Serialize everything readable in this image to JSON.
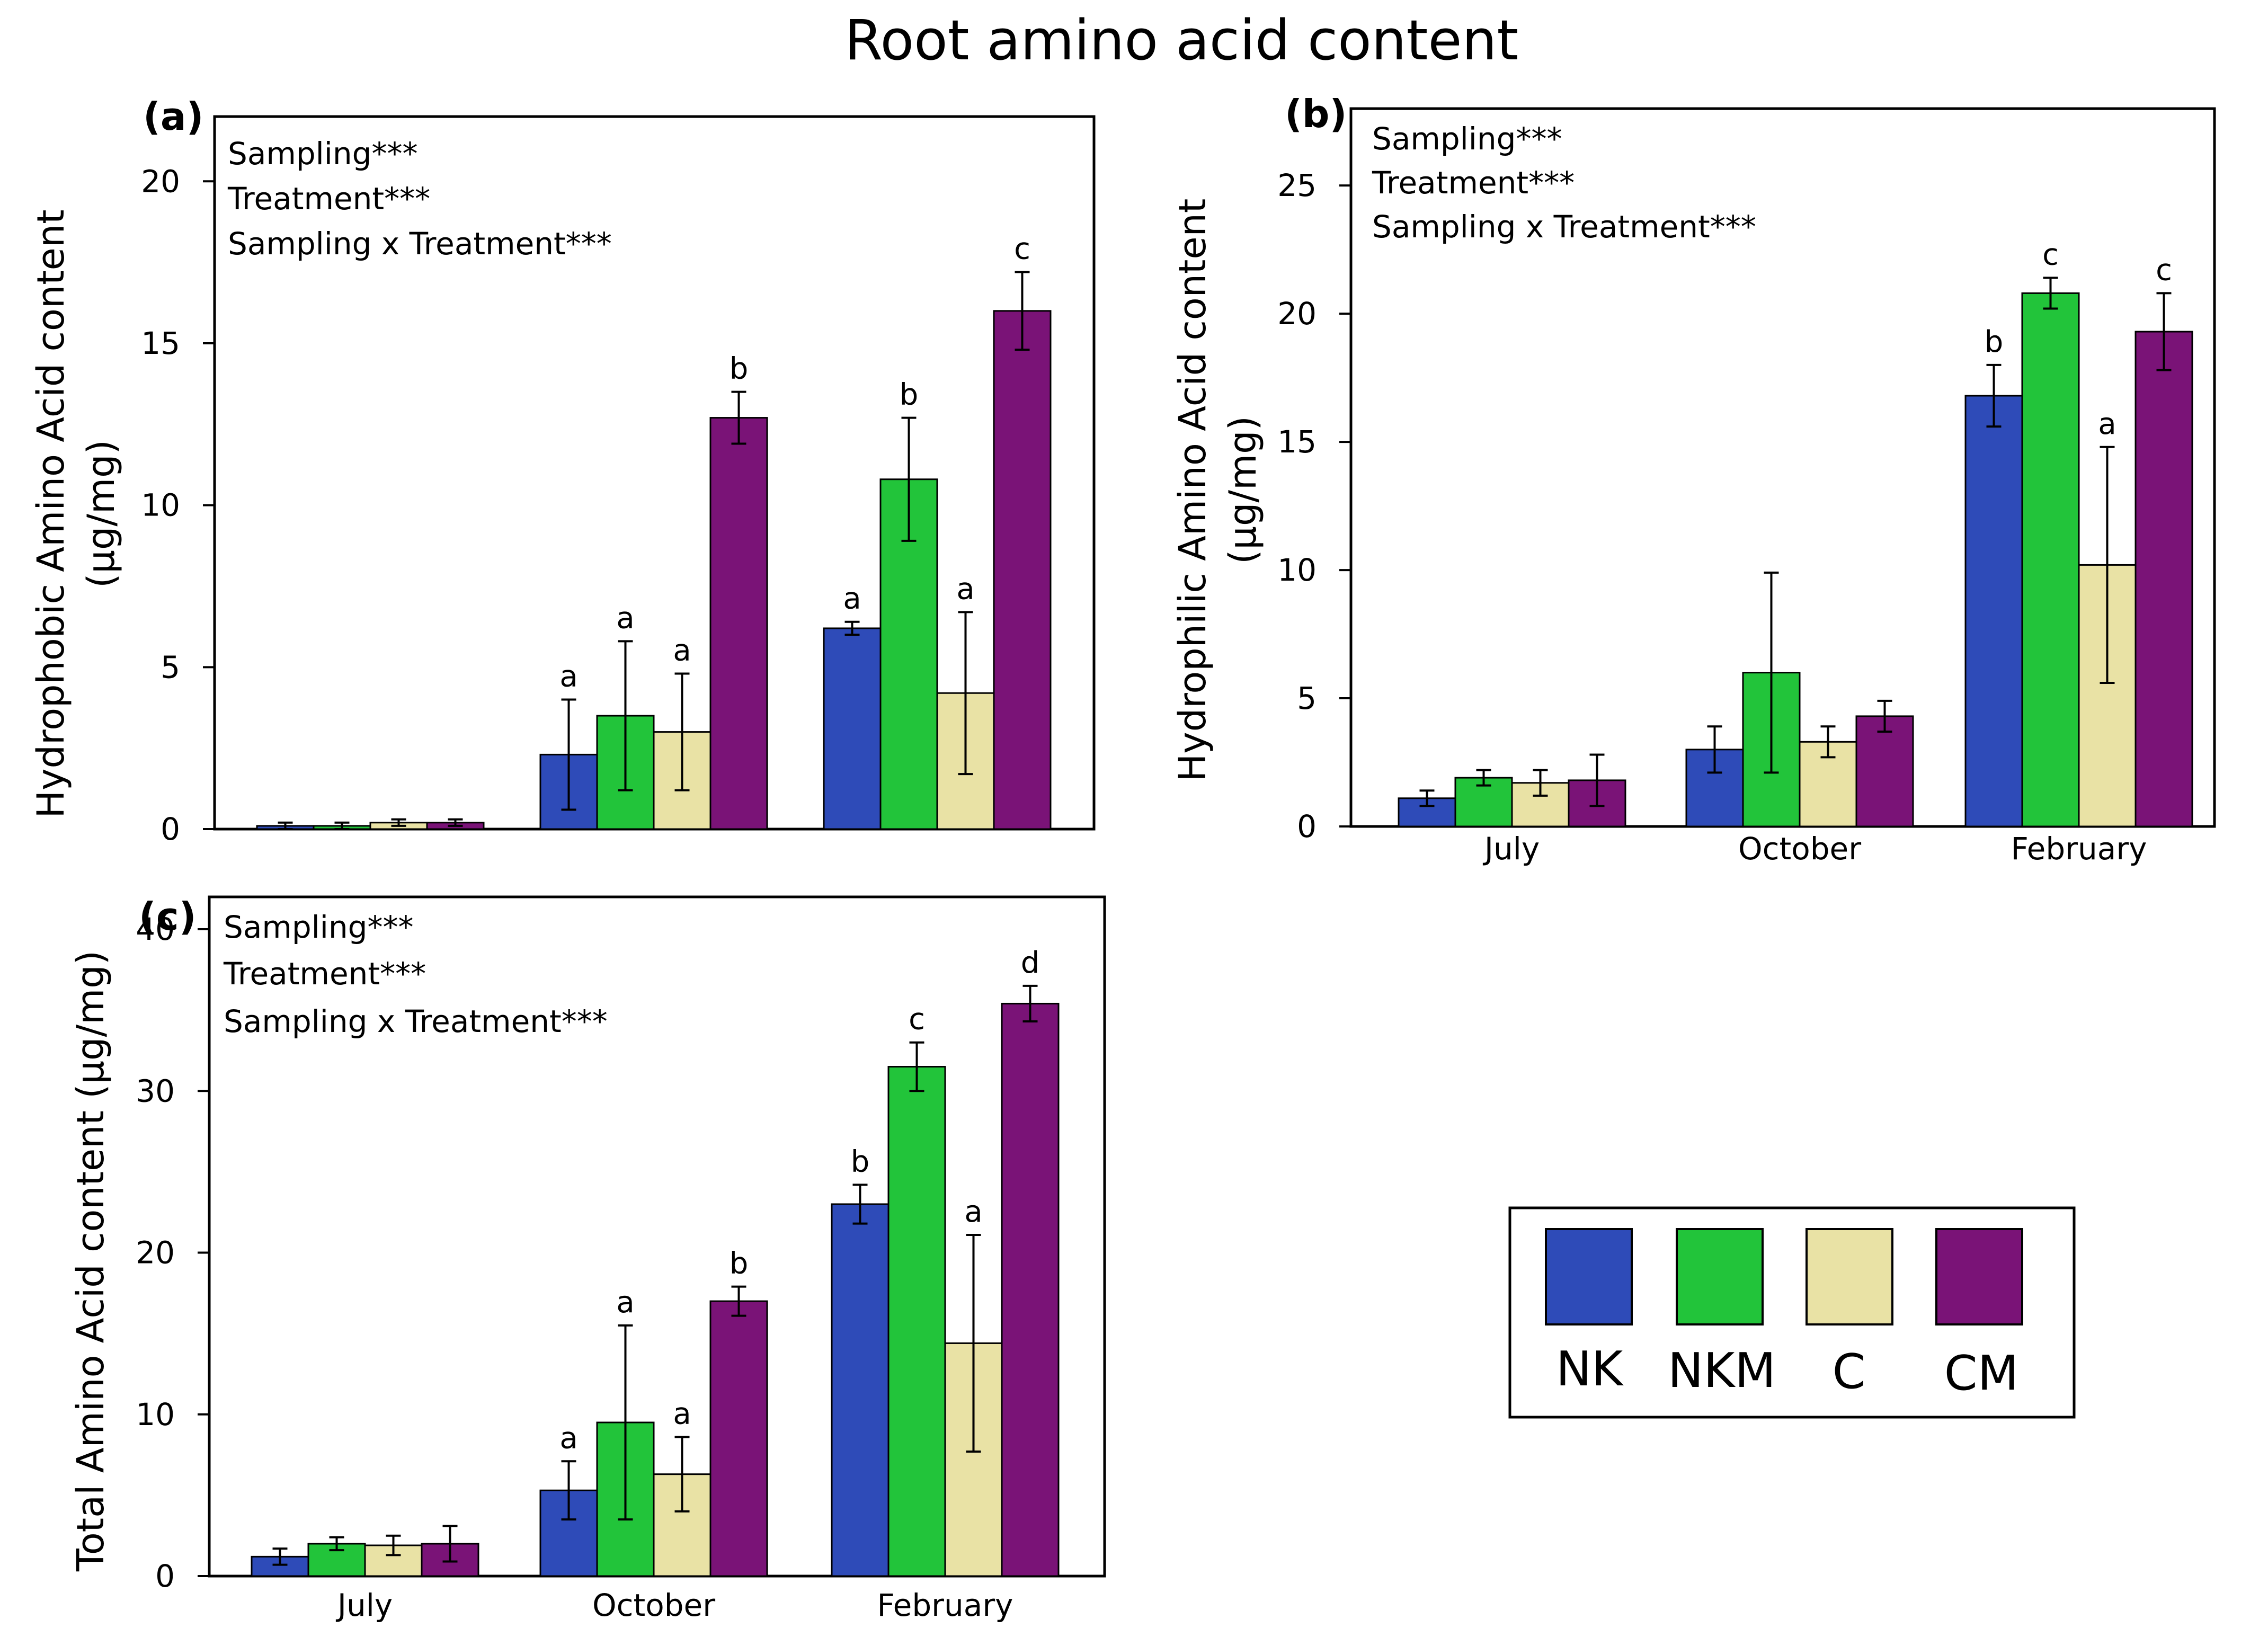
{
  "title": "Root amino acid content",
  "colors": {
    "NK": "#2e4bb8",
    "NKM": "#22c43a",
    "C": "#e9e2a5",
    "CM": "#7a1377"
  },
  "legend": {
    "items": [
      "NK",
      "NKM",
      "C",
      "CM"
    ]
  },
  "chart_data": [
    {
      "type": "bar",
      "panel": "(a)",
      "ylabel_line1": "Hydrophobic Amino Acid content",
      "ylabel_line2": "(µg/mg)",
      "xlabel": "",
      "categories": [
        "July",
        "October",
        "February"
      ],
      "show_category_labels": false,
      "ylim": [
        0,
        22
      ],
      "yticks": [
        0,
        5,
        10,
        15,
        20
      ],
      "stats": [
        "Sampling***",
        "Treatment***",
        "Sampling x Treatment***"
      ],
      "series": [
        {
          "name": "NK",
          "values": [
            0.1,
            2.3,
            6.2
          ],
          "errors": [
            0.1,
            1.7,
            0.2
          ],
          "letters": [
            "",
            "a",
            "a"
          ]
        },
        {
          "name": "NKM",
          "values": [
            0.1,
            3.5,
            10.8
          ],
          "errors": [
            0.1,
            2.3,
            1.9
          ],
          "letters": [
            "",
            "a",
            "b"
          ]
        },
        {
          "name": "C",
          "values": [
            0.2,
            3.0,
            4.2
          ],
          "errors": [
            0.1,
            1.8,
            2.5
          ],
          "letters": [
            "",
            "a",
            "a"
          ]
        },
        {
          "name": "CM",
          "values": [
            0.2,
            12.7,
            16.0
          ],
          "errors": [
            0.1,
            0.8,
            1.2
          ],
          "letters": [
            "",
            "b",
            "c"
          ]
        }
      ]
    },
    {
      "type": "bar",
      "panel": "(b)",
      "ylabel_line1": "Hydrophilic Amino Acid content",
      "ylabel_line2": "(µg/mg)",
      "xlabel": "",
      "categories": [
        "July",
        "October",
        "February"
      ],
      "show_category_labels": true,
      "ylim": [
        0,
        28
      ],
      "yticks": [
        0,
        5,
        10,
        15,
        20,
        25
      ],
      "stats": [
        "Sampling***",
        "Treatment***",
        "Sampling x Treatment***"
      ],
      "series": [
        {
          "name": "NK",
          "values": [
            1.1,
            3.0,
            16.8
          ],
          "errors": [
            0.3,
            0.9,
            1.2
          ],
          "letters": [
            "",
            "",
            "b"
          ]
        },
        {
          "name": "NKM",
          "values": [
            1.9,
            6.0,
            20.8
          ],
          "errors": [
            0.3,
            3.9,
            0.6
          ],
          "letters": [
            "",
            "",
            "c"
          ]
        },
        {
          "name": "C",
          "values": [
            1.7,
            3.3,
            10.2
          ],
          "errors": [
            0.5,
            0.6,
            4.6
          ],
          "letters": [
            "",
            "",
            "a"
          ]
        },
        {
          "name": "CM",
          "values": [
            1.8,
            4.3,
            19.3
          ],
          "errors": [
            1.0,
            0.6,
            1.5
          ],
          "letters": [
            "",
            "",
            "c"
          ]
        }
      ]
    },
    {
      "type": "bar",
      "panel": "(c)",
      "ylabel_line1": "Total Amino Acid content (µg/mg)",
      "ylabel_line2": "",
      "xlabel": "",
      "categories": [
        "July",
        "October",
        "February"
      ],
      "show_category_labels": true,
      "ylim": [
        0,
        42
      ],
      "yticks": [
        0,
        10,
        20,
        30,
        40
      ],
      "stats": [
        "Sampling***",
        "Treatment***",
        "Sampling x Treatment***"
      ],
      "series": [
        {
          "name": "NK",
          "values": [
            1.2,
            5.3,
            23.0
          ],
          "errors": [
            0.5,
            1.8,
            1.2
          ],
          "letters": [
            "",
            "a",
            "b"
          ]
        },
        {
          "name": "NKM",
          "values": [
            2.0,
            9.5,
            31.5
          ],
          "errors": [
            0.4,
            6.0,
            1.5
          ],
          "letters": [
            "",
            "a",
            "c"
          ]
        },
        {
          "name": "C",
          "values": [
            1.9,
            6.3,
            14.4
          ],
          "errors": [
            0.6,
            2.3,
            6.7
          ],
          "letters": [
            "",
            "a",
            "a"
          ]
        },
        {
          "name": "CM",
          "values": [
            2.0,
            17.0,
            35.4
          ],
          "errors": [
            1.1,
            0.9,
            1.1
          ],
          "letters": [
            "",
            "b",
            "d"
          ]
        }
      ]
    }
  ]
}
